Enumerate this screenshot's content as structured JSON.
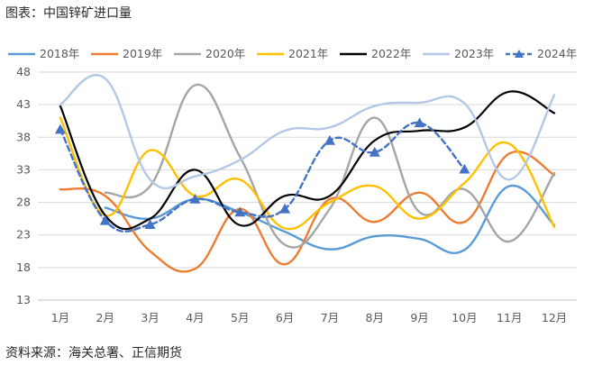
{
  "title": "图表：中国锌矿进口量",
  "source": "资料来源：海关总署、正信期货",
  "chart_data": {
    "type": "line",
    "categories": [
      "1月",
      "2月",
      "3月",
      "4月",
      "5月",
      "6月",
      "7月",
      "8月",
      "9月",
      "10月",
      "11月",
      "12月"
    ],
    "ylim": [
      13,
      48
    ],
    "yticks": [
      13,
      18,
      23,
      28,
      33,
      38,
      43,
      48
    ],
    "grid": "horizontal",
    "legend_position": "top",
    "series": [
      {
        "name": "2018年",
        "color": "#5B9BD5",
        "dash": false,
        "marker": "none",
        "values": [
          null,
          27.2,
          25.5,
          28.5,
          26.5,
          23.5,
          20.8,
          22.8,
          22.4,
          20.7,
          30.5,
          24.5
        ]
      },
      {
        "name": "2019年",
        "color": "#ED7D31",
        "dash": false,
        "marker": "none",
        "values": [
          30.0,
          29.0,
          20.5,
          17.8,
          27.0,
          18.5,
          28.5,
          25.0,
          29.5,
          25.0,
          35.5,
          32.2
        ]
      },
      {
        "name": "2020年",
        "color": "#A5A5A5",
        "dash": false,
        "marker": "none",
        "values": [
          null,
          29.5,
          30.5,
          46.0,
          35.0,
          21.5,
          27.0,
          41.0,
          26.5,
          30.0,
          22.0,
          32.5
        ]
      },
      {
        "name": "2021年",
        "color": "#FFC000",
        "dash": false,
        "marker": "none",
        "values": [
          41.0,
          26.0,
          36.0,
          29.0,
          31.5,
          24.0,
          28.0,
          30.5,
          25.5,
          31.0,
          37.0,
          24.2
        ]
      },
      {
        "name": "2022年",
        "color": "#000000",
        "dash": false,
        "marker": "none",
        "values": [
          42.8,
          26.0,
          25.5,
          33.0,
          24.5,
          29.0,
          29.0,
          37.5,
          39.0,
          39.5,
          45.0,
          41.7
        ]
      },
      {
        "name": "2023年",
        "color": "#B4C7E7",
        "dash": false,
        "marker": "none",
        "values": [
          43.0,
          47.0,
          31.5,
          32.0,
          34.5,
          39.0,
          39.5,
          42.8,
          43.3,
          43.2,
          31.5,
          44.5
        ]
      },
      {
        "name": "2024年",
        "color": "#4472C4",
        "dash": true,
        "marker": "triangle",
        "values": [
          39.2,
          25.2,
          24.6,
          28.5,
          26.5,
          27.0,
          37.5,
          35.7,
          40.2,
          33.1,
          null,
          null
        ]
      }
    ]
  }
}
